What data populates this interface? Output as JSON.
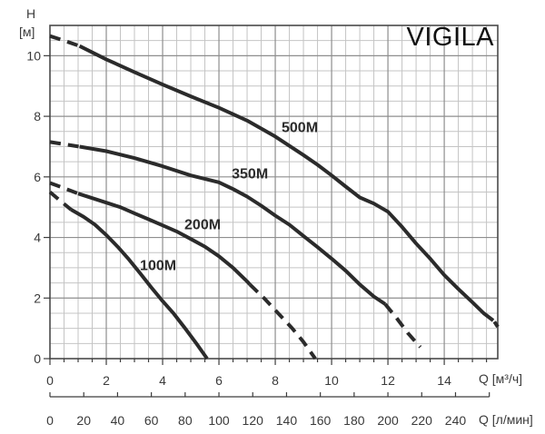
{
  "chart_data": {
    "type": "line",
    "title": "VIGILA",
    "y_name": "H",
    "y_unit": "[м]",
    "xlabel_primary": "Q [м³/ч]",
    "xlabel_secondary": "Q [л/мин]",
    "xlim": [
      0,
      15.9
    ],
    "ylim": [
      0,
      11.0
    ],
    "x_major_ticks": [
      0,
      2,
      4,
      6,
      8,
      10,
      12,
      14
    ],
    "y_major_ticks": [
      0,
      2,
      4,
      6,
      8,
      10
    ],
    "x2_ticks": [
      0,
      20,
      40,
      60,
      80,
      100,
      120,
      140,
      160,
      180,
      200,
      220,
      240
    ],
    "x2_per_x1": 16.667,
    "grid_minor_step": 0.5,
    "grid": "on",
    "legend_position": "labels-on-curves",
    "series": [
      {
        "name": "100M",
        "label_at": [
          3.84,
          3.08
        ],
        "segments": [
          {
            "style": "dashed",
            "points": [
              [
                0,
                5.5
              ],
              [
                0.35,
                5.22
              ],
              [
                0.75,
                4.92
              ]
            ]
          },
          {
            "style": "solid",
            "points": [
              [
                0.75,
                4.92
              ],
              [
                1.2,
                4.68
              ],
              [
                1.6,
                4.42
              ],
              [
                2,
                4.08
              ],
              [
                2.4,
                3.7
              ],
              [
                2.8,
                3.28
              ],
              [
                3.2,
                2.82
              ],
              [
                3.6,
                2.35
              ],
              [
                4,
                1.9
              ],
              [
                4.4,
                1.48
              ],
              [
                4.8,
                1.0
              ],
              [
                5.2,
                0.5
              ],
              [
                5.58,
                0
              ]
            ]
          }
        ]
      },
      {
        "name": "200M",
        "label_at": [
          5.42,
          4.44
        ],
        "segments": [
          {
            "style": "dashed",
            "points": [
              [
                0,
                5.8
              ],
              [
                0.5,
                5.63
              ],
              [
                1.0,
                5.45
              ]
            ]
          },
          {
            "style": "solid",
            "points": [
              [
                1.0,
                5.45
              ],
              [
                1.5,
                5.3
              ],
              [
                2,
                5.15
              ],
              [
                2.5,
                5.0
              ],
              [
                3,
                4.8
              ],
              [
                3.5,
                4.6
              ],
              [
                4,
                4.4
              ],
              [
                4.5,
                4.2
              ],
              [
                5,
                3.95
              ],
              [
                5.5,
                3.7
              ],
              [
                6,
                3.38
              ],
              [
                6.5,
                3.0
              ],
              [
                7,
                2.55
              ],
              [
                7.1,
                2.45
              ]
            ]
          },
          {
            "style": "dashed",
            "points": [
              [
                7.1,
                2.45
              ],
              [
                7.6,
                2.0
              ],
              [
                8.1,
                1.5
              ],
              [
                8.6,
                1.0
              ],
              [
                9.0,
                0.55
              ],
              [
                9.42,
                0
              ]
            ]
          }
        ]
      },
      {
        "name": "350M",
        "label_at": [
          7.1,
          6.12
        ],
        "segments": [
          {
            "style": "dashed",
            "points": [
              [
                0,
                7.15
              ],
              [
                0.5,
                7.08
              ],
              [
                1.05,
                7.0
              ]
            ]
          },
          {
            "style": "solid",
            "points": [
              [
                1.05,
                7.0
              ],
              [
                2,
                6.85
              ],
              [
                3,
                6.62
              ],
              [
                4,
                6.35
              ],
              [
                5,
                6.05
              ],
              [
                6,
                5.82
              ],
              [
                6.5,
                5.6
              ],
              [
                7,
                5.35
              ],
              [
                7.5,
                5.05
              ],
              [
                8,
                4.72
              ],
              [
                8.5,
                4.42
              ],
              [
                9,
                4.05
              ],
              [
                9.5,
                3.68
              ],
              [
                10,
                3.3
              ],
              [
                10.5,
                2.9
              ],
              [
                11,
                2.45
              ],
              [
                11.5,
                2.05
              ],
              [
                11.9,
                1.8
              ]
            ]
          },
          {
            "style": "dashed",
            "points": [
              [
                11.9,
                1.8
              ],
              [
                12.3,
                1.35
              ],
              [
                12.7,
                0.85
              ],
              [
                13.15,
                0.38
              ]
            ]
          }
        ]
      },
      {
        "name": "500M",
        "label_at": [
          8.87,
          7.65
        ],
        "segments": [
          {
            "style": "dashed",
            "points": [
              [
                0,
                10.65
              ],
              [
                0.5,
                10.5
              ],
              [
                1.05,
                10.32
              ]
            ]
          },
          {
            "style": "solid",
            "points": [
              [
                1.05,
                10.32
              ],
              [
                2,
                9.88
              ],
              [
                3,
                9.46
              ],
              [
                4,
                9.05
              ],
              [
                5,
                8.66
              ],
              [
                6,
                8.28
              ],
              [
                7,
                7.86
              ],
              [
                8,
                7.33
              ],
              [
                9,
                6.72
              ],
              [
                9.5,
                6.4
              ],
              [
                10,
                6.05
              ],
              [
                10.5,
                5.68
              ],
              [
                11,
                5.32
              ],
              [
                11.5,
                5.12
              ],
              [
                12,
                4.85
              ],
              [
                12.5,
                4.35
              ],
              [
                13,
                3.8
              ],
              [
                13.5,
                3.3
              ],
              [
                14,
                2.76
              ],
              [
                14.5,
                2.3
              ],
              [
                15,
                1.86
              ],
              [
                15.4,
                1.5
              ],
              [
                15.74,
                1.26
              ]
            ]
          },
          {
            "style": "dashed",
            "points": [
              [
                15.78,
                1.22
              ],
              [
                15.9,
                1.05
              ]
            ]
          }
        ]
      }
    ]
  },
  "colors": {
    "curve": "#2b2b2b",
    "grid_minor": "#c4c4c4",
    "grid_major": "#8e8e8e",
    "border": "#4a4a4a",
    "axis": "#3d3d3d",
    "text": "#3a3a3a"
  }
}
